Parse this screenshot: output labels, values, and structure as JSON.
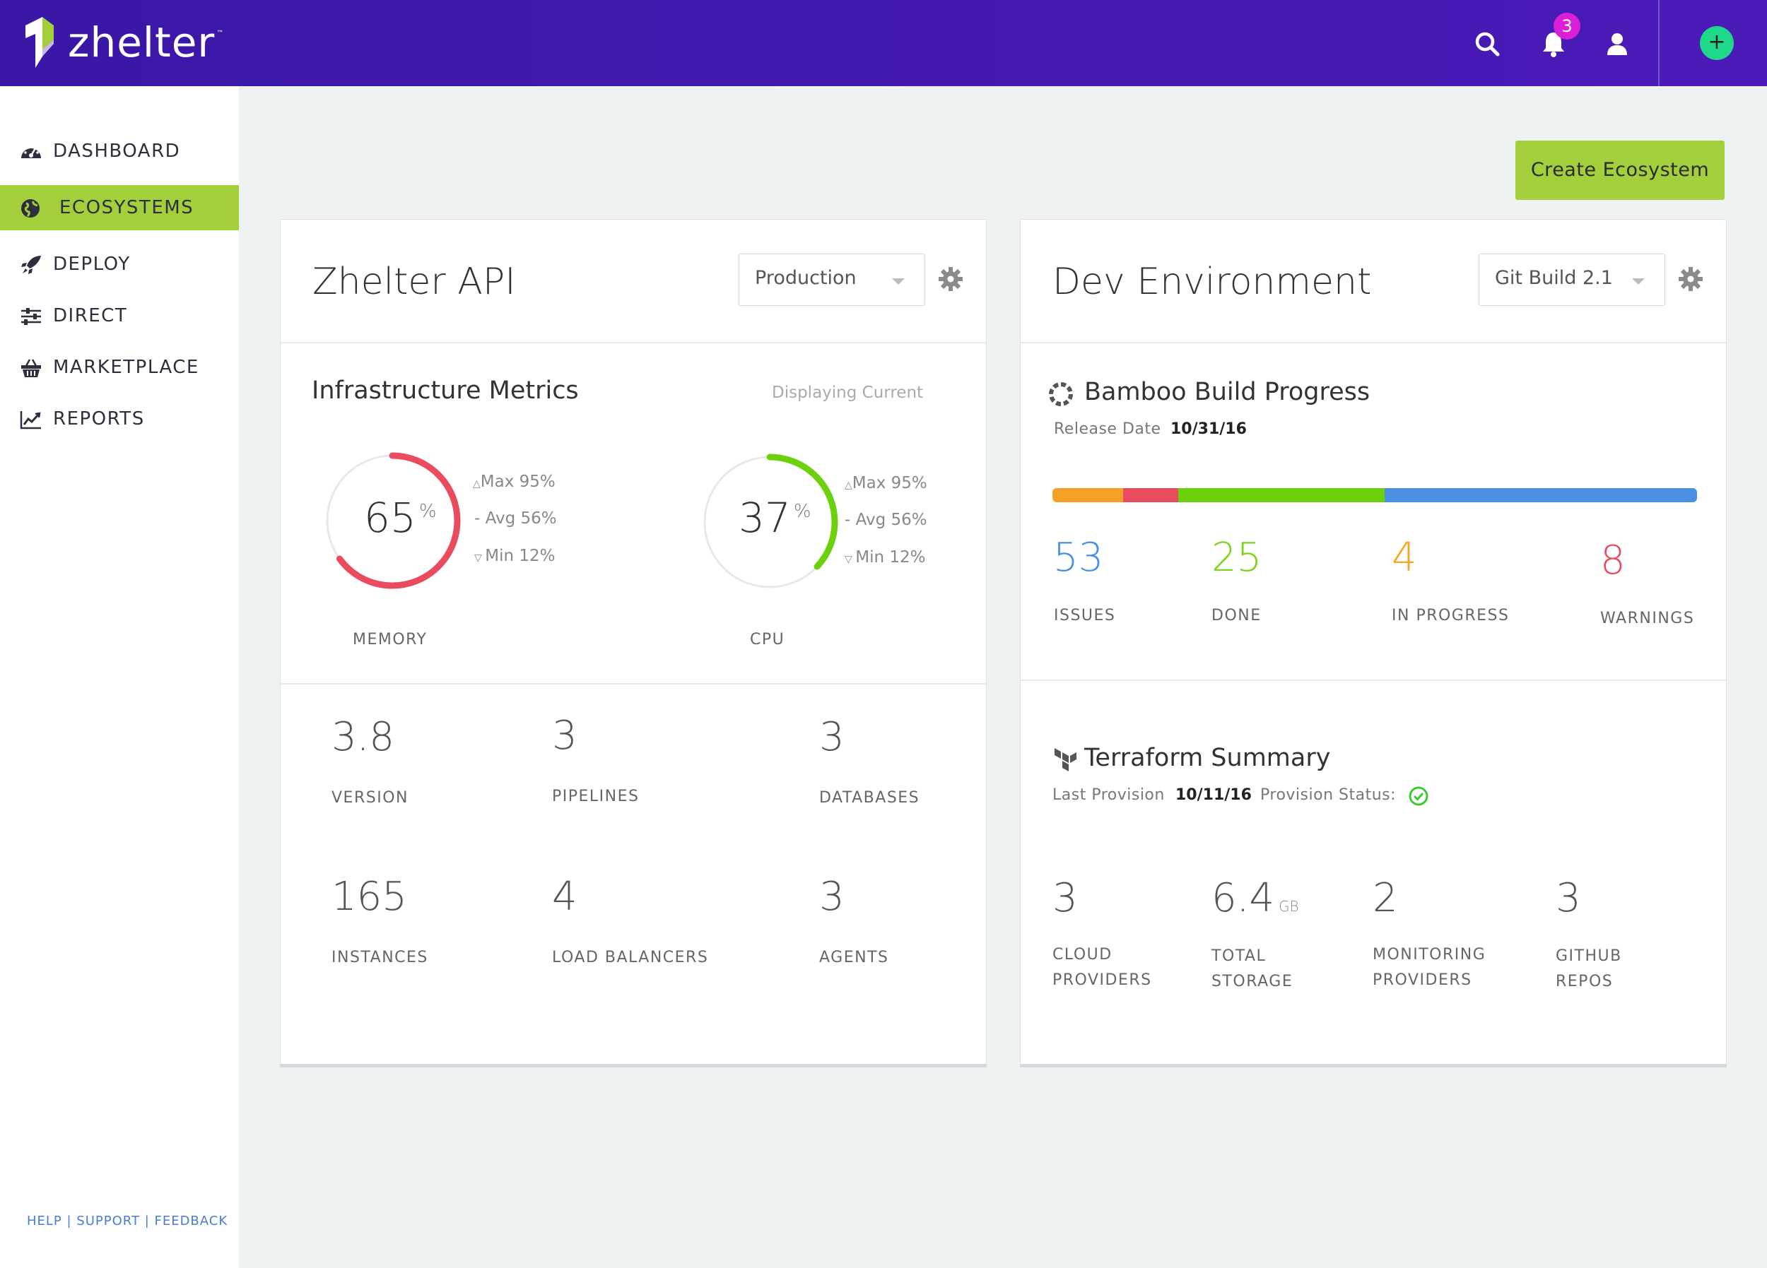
{
  "brand": {
    "name": "zhelter",
    "tm": "™"
  },
  "header": {
    "notifications_count": "3"
  },
  "sidebar": {
    "items": [
      {
        "label": "DASHBOARD"
      },
      {
        "label": "ECOSYSTEMS"
      },
      {
        "label": "DEPLOY"
      },
      {
        "label": "DIRECT"
      },
      {
        "label": "MARKETPLACE"
      },
      {
        "label": "REPORTS"
      }
    ],
    "footer": "HELP | SUPPORT | FEEDBACK"
  },
  "actions": {
    "create_label": "Create Ecosystem"
  },
  "api_card": {
    "title": "Zhelter API",
    "env_select": "Production",
    "metrics_title": "Infrastructure Metrics",
    "metrics_note": "Displaying Current",
    "memory": {
      "value": "65",
      "unit": "%",
      "label": "MEMORY",
      "max": "Max 95%",
      "avg": "Avg 56%",
      "min": "Min 12%",
      "fraction": 0.65,
      "color": "#e94b5f"
    },
    "cpu": {
      "value": "37",
      "unit": "%",
      "label": "CPU",
      "max": "Max 95%",
      "avg": "Avg 56%",
      "min": "Min 12%",
      "fraction": 0.37,
      "color": "#6cd10d"
    },
    "stats": [
      {
        "value": "3.8",
        "label": "VERSION"
      },
      {
        "value": "3",
        "label": "PIPELINES"
      },
      {
        "value": "3",
        "label": "DATABASES"
      },
      {
        "value": "165",
        "label": "INSTANCES"
      },
      {
        "value": "4",
        "label": "LOAD BALANCERS"
      },
      {
        "value": "3",
        "label": "AGENTS"
      }
    ]
  },
  "dev_card": {
    "title": "Dev Environment",
    "build_select": "Git Build 2.1",
    "bamboo": {
      "title": "Bamboo Build Progress",
      "release_label": "Release Date",
      "release_value": "10/31/16",
      "segments": [
        {
          "fraction": 0.11,
          "color": "#f5a128"
        },
        {
          "fraction": 0.085,
          "color": "#e94b5f"
        },
        {
          "fraction": 0.32,
          "color": "#6cd10d"
        },
        {
          "fraction": 0.485,
          "color": "#4a90e2"
        }
      ],
      "counts": [
        {
          "value": "53",
          "label": "ISSUES",
          "color": "#4a90e2"
        },
        {
          "value": "25",
          "label": "DONE",
          "color": "#7ed321"
        },
        {
          "value": "4",
          "label": "IN PROGRESS",
          "color": "#f5a623"
        },
        {
          "value": "8",
          "label": "WARNINGS",
          "color": "#e94b5f"
        }
      ]
    },
    "terraform": {
      "title": "Terraform Summary",
      "last_label": "Last Provision",
      "last_value": "10/11/16",
      "status_label": "Provision Status:",
      "stats": [
        {
          "value": "3",
          "unit": "",
          "label1": "CLOUD",
          "label2": "PROVIDERS"
        },
        {
          "value": "6.4",
          "unit": "GB",
          "label1": "TOTAL",
          "label2": "STORAGE"
        },
        {
          "value": "2",
          "unit": "",
          "label1": "MONITORING",
          "label2": "PROVIDERS"
        },
        {
          "value": "3",
          "unit": "",
          "label1": "GITHUB",
          "label2": "REPOS"
        }
      ]
    }
  }
}
